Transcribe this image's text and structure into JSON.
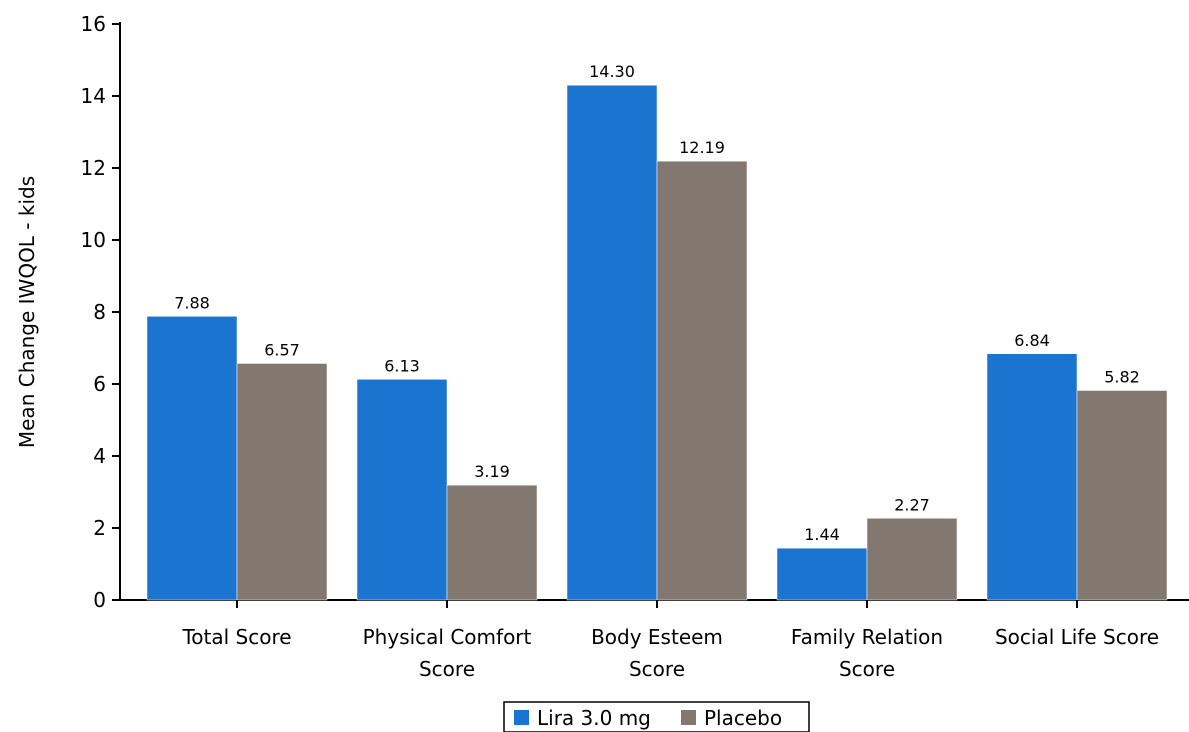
{
  "chart_data": {
    "type": "bar",
    "title": "",
    "xlabel": "",
    "ylabel": "Mean Change IWQOL - kids",
    "ylim": [
      0,
      16
    ],
    "yticks": [
      0,
      2,
      4,
      6,
      8,
      10,
      12,
      14,
      16
    ],
    "grid": false,
    "legend_position": "bottom-center",
    "categories": [
      [
        "Total Score"
      ],
      [
        "Physical Comfort",
        "Score"
      ],
      [
        "Body Esteem",
        "Score"
      ],
      [
        "Family Relation",
        "Score"
      ],
      [
        "Social Life Score"
      ]
    ],
    "series": [
      {
        "name": "Lira 3.0 mg",
        "color": "#1b75d0",
        "values": [
          7.88,
          6.13,
          14.3,
          1.44,
          6.84
        ],
        "labels": [
          "7.88",
          "6.13",
          "14.30",
          "1.44",
          "6.84"
        ]
      },
      {
        "name": "Placebo",
        "color": "#827870",
        "values": [
          6.57,
          3.19,
          12.19,
          2.27,
          5.82
        ],
        "labels": [
          "6.57",
          "3.19",
          "12.19",
          "2.27",
          "5.82"
        ]
      }
    ]
  }
}
